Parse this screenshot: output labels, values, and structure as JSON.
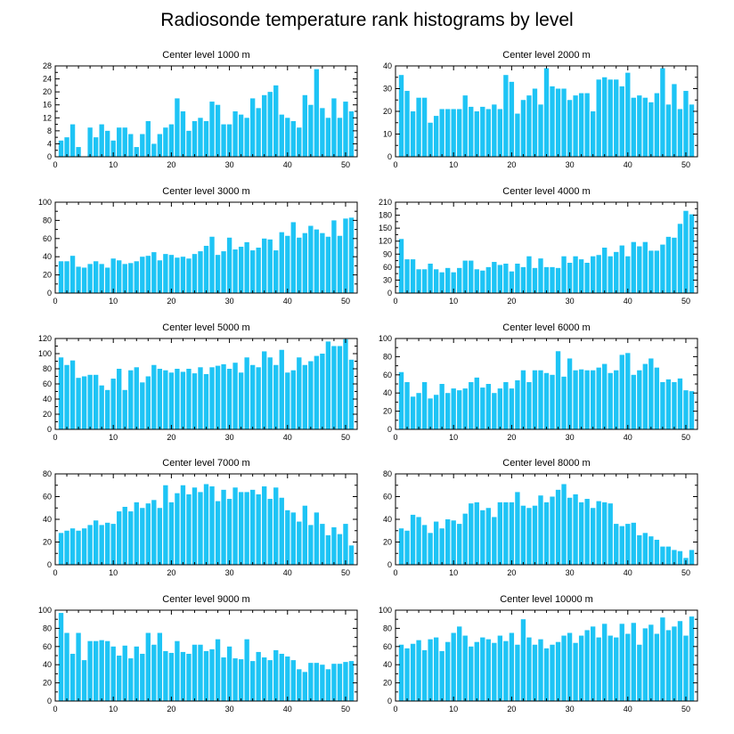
{
  "figure": {
    "title": "Radiosonde temperature rank histograms by level",
    "bar_color": "#1ec4f5",
    "frame_color": "#000000"
  },
  "chart_data": [
    {
      "type": "bar",
      "title": "Center level 1000 m",
      "xlim": [
        0,
        52
      ],
      "ylim": [
        0,
        28
      ],
      "xticks": [
        0,
        10,
        20,
        30,
        40,
        50
      ],
      "yticks": [
        0,
        4,
        8,
        12,
        16,
        20,
        24,
        28
      ],
      "categories": [
        1,
        2,
        3,
        4,
        5,
        6,
        7,
        8,
        9,
        10,
        11,
        12,
        13,
        14,
        15,
        16,
        17,
        18,
        19,
        20,
        21,
        22,
        23,
        24,
        25,
        26,
        27,
        28,
        29,
        30,
        31,
        32,
        33,
        34,
        35,
        36,
        37,
        38,
        39,
        40,
        41,
        42,
        43,
        44,
        45,
        46,
        47,
        48,
        49,
        50,
        51
      ],
      "values": [
        5,
        6,
        10,
        3,
        0,
        9,
        6,
        10,
        8,
        5,
        9,
        9,
        7,
        3,
        7,
        11,
        4,
        7,
        9,
        10,
        18,
        14,
        8,
        11,
        12,
        11,
        17,
        16,
        10,
        10,
        14,
        13,
        12,
        18,
        15,
        19,
        20,
        22,
        13,
        12,
        11,
        9,
        19,
        16,
        27,
        15,
        12,
        18,
        12,
        17,
        14
      ]
    },
    {
      "type": "bar",
      "title": "Center level 2000 m",
      "xlim": [
        0,
        52
      ],
      "ylim": [
        0,
        40
      ],
      "xticks": [
        0,
        10,
        20,
        30,
        40,
        50
      ],
      "yticks": [
        0,
        10,
        20,
        30,
        40
      ],
      "categories": [
        1,
        2,
        3,
        4,
        5,
        6,
        7,
        8,
        9,
        10,
        11,
        12,
        13,
        14,
        15,
        16,
        17,
        18,
        19,
        20,
        21,
        22,
        23,
        24,
        25,
        26,
        27,
        28,
        29,
        30,
        31,
        32,
        33,
        34,
        35,
        36,
        37,
        38,
        39,
        40,
        41,
        42,
        43,
        44,
        45,
        46,
        47,
        48,
        49,
        50,
        51
      ],
      "values": [
        36,
        29,
        20,
        26,
        26,
        15,
        18,
        21,
        21,
        21,
        21,
        27,
        22,
        20,
        22,
        21,
        23,
        21,
        36,
        33,
        19,
        25,
        27,
        30,
        23,
        39,
        31,
        30,
        30,
        25,
        27,
        28,
        28,
        20,
        34,
        35,
        34,
        34,
        31,
        37,
        26,
        27,
        26,
        24,
        28,
        39,
        23,
        32,
        21,
        29,
        23
      ]
    },
    {
      "type": "bar",
      "title": "Center level 3000 m",
      "xlim": [
        0,
        52
      ],
      "ylim": [
        0,
        100
      ],
      "xticks": [
        0,
        10,
        20,
        30,
        40,
        50
      ],
      "yticks": [
        0,
        20,
        40,
        60,
        80,
        100
      ],
      "categories": [
        1,
        2,
        3,
        4,
        5,
        6,
        7,
        8,
        9,
        10,
        11,
        12,
        13,
        14,
        15,
        16,
        17,
        18,
        19,
        20,
        21,
        22,
        23,
        24,
        25,
        26,
        27,
        28,
        29,
        30,
        31,
        32,
        33,
        34,
        35,
        36,
        37,
        38,
        39,
        40,
        41,
        42,
        43,
        44,
        45,
        46,
        47,
        48,
        49,
        50,
        51
      ],
      "values": [
        35,
        35,
        41,
        29,
        28,
        32,
        35,
        32,
        28,
        38,
        36,
        32,
        33,
        35,
        40,
        41,
        45,
        36,
        43,
        42,
        39,
        40,
        38,
        43,
        46,
        52,
        62,
        42,
        46,
        61,
        48,
        51,
        56,
        47,
        50,
        60,
        59,
        47,
        67,
        63,
        78,
        61,
        66,
        74,
        70,
        66,
        62,
        80,
        63,
        82,
        83
      ]
    },
    {
      "type": "bar",
      "title": "Center level 4000 m",
      "xlim": [
        0,
        52
      ],
      "ylim": [
        0,
        210
      ],
      "xticks": [
        0,
        10,
        20,
        30,
        40,
        50
      ],
      "yticks": [
        0,
        30,
        60,
        90,
        120,
        150,
        180,
        210
      ],
      "categories": [
        1,
        2,
        3,
        4,
        5,
        6,
        7,
        8,
        9,
        10,
        11,
        12,
        13,
        14,
        15,
        16,
        17,
        18,
        19,
        20,
        21,
        22,
        23,
        24,
        25,
        26,
        27,
        28,
        29,
        30,
        31,
        32,
        33,
        34,
        35,
        36,
        37,
        38,
        39,
        40,
        41,
        42,
        43,
        44,
        45,
        46,
        47,
        48,
        49,
        50,
        51
      ],
      "values": [
        125,
        78,
        78,
        55,
        55,
        68,
        55,
        48,
        58,
        48,
        58,
        75,
        75,
        55,
        52,
        60,
        72,
        65,
        68,
        50,
        68,
        60,
        85,
        58,
        80,
        60,
        60,
        58,
        85,
        70,
        85,
        78,
        70,
        85,
        88,
        105,
        85,
        95,
        110,
        85,
        118,
        108,
        118,
        98,
        98,
        112,
        130,
        128,
        160,
        190,
        182
      ]
    },
    {
      "type": "bar",
      "title": "Center level 5000 m",
      "xlim": [
        0,
        52
      ],
      "ylim": [
        0,
        120
      ],
      "xticks": [
        0,
        10,
        20,
        30,
        40,
        50
      ],
      "yticks": [
        0,
        20,
        40,
        60,
        80,
        100,
        120
      ],
      "categories": [
        1,
        2,
        3,
        4,
        5,
        6,
        7,
        8,
        9,
        10,
        11,
        12,
        13,
        14,
        15,
        16,
        17,
        18,
        19,
        20,
        21,
        22,
        23,
        24,
        25,
        26,
        27,
        28,
        29,
        30,
        31,
        32,
        33,
        34,
        35,
        36,
        37,
        38,
        39,
        40,
        41,
        42,
        43,
        44,
        45,
        46,
        47,
        48,
        49,
        50,
        51
      ],
      "values": [
        95,
        85,
        91,
        68,
        70,
        72,
        72,
        58,
        52,
        67,
        80,
        52,
        78,
        82,
        62,
        70,
        85,
        80,
        78,
        75,
        80,
        76,
        80,
        74,
        82,
        73,
        82,
        84,
        86,
        80,
        88,
        75,
        95,
        85,
        82,
        103,
        95,
        85,
        105,
        75,
        78,
        95,
        85,
        90,
        97,
        100,
        116,
        110,
        110,
        119,
        92
      ]
    },
    {
      "type": "bar",
      "title": "Center level 6000 m",
      "xlim": [
        0,
        52
      ],
      "ylim": [
        0,
        100
      ],
      "xticks": [
        0,
        10,
        20,
        30,
        40,
        50
      ],
      "yticks": [
        0,
        20,
        40,
        60,
        80,
        100
      ],
      "categories": [
        1,
        2,
        3,
        4,
        5,
        6,
        7,
        8,
        9,
        10,
        11,
        12,
        13,
        14,
        15,
        16,
        17,
        18,
        19,
        20,
        21,
        22,
        23,
        24,
        25,
        26,
        27,
        28,
        29,
        30,
        31,
        32,
        33,
        34,
        35,
        36,
        37,
        38,
        39,
        40,
        41,
        42,
        43,
        44,
        45,
        46,
        47,
        48,
        49,
        50,
        51
      ],
      "values": [
        63,
        52,
        36,
        40,
        52,
        34,
        38,
        50,
        40,
        45,
        43,
        45,
        52,
        57,
        46,
        50,
        40,
        45,
        52,
        45,
        54,
        65,
        52,
        65,
        65,
        62,
        60,
        86,
        58,
        78,
        65,
        66,
        65,
        65,
        68,
        72,
        62,
        65,
        82,
        84,
        60,
        65,
        72,
        78,
        68,
        52,
        55,
        52,
        56,
        43,
        42
      ]
    },
    {
      "type": "bar",
      "title": "Center level 7000 m",
      "xlim": [
        0,
        52
      ],
      "ylim": [
        0,
        80
      ],
      "xticks": [
        0,
        10,
        20,
        30,
        40,
        50
      ],
      "yticks": [
        0,
        20,
        40,
        60,
        80
      ],
      "categories": [
        1,
        2,
        3,
        4,
        5,
        6,
        7,
        8,
        9,
        10,
        11,
        12,
        13,
        14,
        15,
        16,
        17,
        18,
        19,
        20,
        21,
        22,
        23,
        24,
        25,
        26,
        27,
        28,
        29,
        30,
        31,
        32,
        33,
        34,
        35,
        36,
        37,
        38,
        39,
        40,
        41,
        42,
        43,
        44,
        45,
        46,
        47,
        48,
        49,
        50,
        51
      ],
      "values": [
        28,
        30,
        32,
        30,
        32,
        35,
        39,
        35,
        37,
        36,
        47,
        51,
        47,
        55,
        50,
        54,
        57,
        50,
        70,
        55,
        63,
        70,
        62,
        68,
        64,
        71,
        69,
        56,
        66,
        58,
        68,
        64,
        64,
        66,
        62,
        69,
        58,
        68,
        59,
        48,
        46,
        38,
        52,
        35,
        46,
        36,
        26,
        33,
        27,
        36,
        17
      ]
    },
    {
      "type": "bar",
      "title": "Center level 8000 m",
      "xlim": [
        0,
        52
      ],
      "ylim": [
        0,
        80
      ],
      "xticks": [
        0,
        10,
        20,
        30,
        40,
        50
      ],
      "yticks": [
        0,
        20,
        40,
        60,
        80
      ],
      "categories": [
        1,
        2,
        3,
        4,
        5,
        6,
        7,
        8,
        9,
        10,
        11,
        12,
        13,
        14,
        15,
        16,
        17,
        18,
        19,
        20,
        21,
        22,
        23,
        24,
        25,
        26,
        27,
        28,
        29,
        30,
        31,
        32,
        33,
        34,
        35,
        36,
        37,
        38,
        39,
        40,
        41,
        42,
        43,
        44,
        45,
        46,
        47,
        48,
        49,
        50,
        51
      ],
      "values": [
        32,
        30,
        44,
        42,
        35,
        28,
        38,
        32,
        40,
        39,
        36,
        45,
        54,
        55,
        48,
        50,
        42,
        55,
        55,
        55,
        64,
        52,
        50,
        52,
        61,
        55,
        60,
        66,
        71,
        59,
        62,
        55,
        58,
        50,
        56,
        55,
        54,
        36,
        34,
        36,
        37,
        26,
        28,
        25,
        22,
        16,
        16,
        13,
        12,
        6,
        13
      ]
    },
    {
      "type": "bar",
      "title": "Center level 9000 m",
      "xlim": [
        0,
        52
      ],
      "ylim": [
        0,
        100
      ],
      "xticks": [
        0,
        10,
        20,
        30,
        40,
        50
      ],
      "yticks": [
        0,
        20,
        40,
        60,
        80,
        100
      ],
      "categories": [
        1,
        2,
        3,
        4,
        5,
        6,
        7,
        8,
        9,
        10,
        11,
        12,
        13,
        14,
        15,
        16,
        17,
        18,
        19,
        20,
        21,
        22,
        23,
        24,
        25,
        26,
        27,
        28,
        29,
        30,
        31,
        32,
        33,
        34,
        35,
        36,
        37,
        38,
        39,
        40,
        41,
        42,
        43,
        44,
        45,
        46,
        47,
        48,
        49,
        50,
        51
      ],
      "values": [
        97,
        75,
        52,
        75,
        45,
        66,
        66,
        67,
        66,
        60,
        50,
        61,
        47,
        60,
        52,
        75,
        62,
        75,
        55,
        53,
        66,
        54,
        52,
        62,
        62,
        55,
        57,
        68,
        48,
        60,
        47,
        46,
        68,
        44,
        54,
        48,
        45,
        56,
        52,
        49,
        45,
        35,
        32,
        42,
        42,
        40,
        35,
        41,
        41,
        43,
        44
      ]
    },
    {
      "type": "bar",
      "title": "Center level 10000 m",
      "xlim": [
        0,
        52
      ],
      "ylim": [
        0,
        100
      ],
      "xticks": [
        0,
        10,
        20,
        30,
        40,
        50
      ],
      "yticks": [
        0,
        20,
        40,
        60,
        80,
        100
      ],
      "categories": [
        1,
        2,
        3,
        4,
        5,
        6,
        7,
        8,
        9,
        10,
        11,
        12,
        13,
        14,
        15,
        16,
        17,
        18,
        19,
        20,
        21,
        22,
        23,
        24,
        25,
        26,
        27,
        28,
        29,
        30,
        31,
        32,
        33,
        34,
        35,
        36,
        37,
        38,
        39,
        40,
        41,
        42,
        43,
        44,
        45,
        46,
        47,
        48,
        49,
        50,
        51
      ],
      "values": [
        62,
        58,
        63,
        67,
        56,
        68,
        70,
        55,
        65,
        75,
        82,
        72,
        60,
        65,
        70,
        68,
        64,
        72,
        66,
        75,
        62,
        90,
        70,
        62,
        68,
        58,
        62,
        65,
        72,
        75,
        64,
        72,
        78,
        82,
        70,
        85,
        72,
        70,
        85,
        74,
        86,
        62,
        80,
        84,
        74,
        92,
        78,
        82,
        88,
        72,
        93
      ]
    }
  ]
}
